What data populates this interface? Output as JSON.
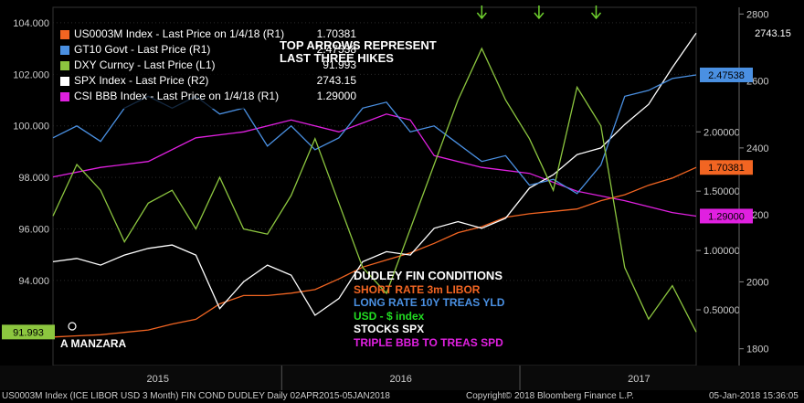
{
  "chart_data": {
    "type": "line",
    "title": "",
    "x_ticks": [
      "2015",
      "2016",
      "2017"
    ],
    "left_axis": {
      "ticks": [
        "104.000",
        "102.000",
        "100.000",
        "98.000",
        "96.000",
        "94.000"
      ],
      "range": [
        90.7,
        104.6
      ]
    },
    "right_axis_r1": {
      "ticks": [
        "2.00000",
        "1.50000",
        "1.00000",
        "0.50000"
      ],
      "range": [
        0.03,
        3.05
      ]
    },
    "right_axis_r2": {
      "ticks": [
        "2800",
        "2600",
        "2400",
        "2200",
        "2000",
        "1800"
      ],
      "range": [
        1750,
        2820
      ]
    },
    "series": [
      {
        "name": "US0003M Index - Last Price on 1/4/18 (R1)",
        "value_label": "1.70381",
        "color": "#f26522",
        "axis": "R1",
        "points": [
          [
            0,
            0.27
          ],
          [
            0.05,
            0.28
          ],
          [
            0.1,
            0.29
          ],
          [
            0.15,
            0.31
          ],
          [
            0.2,
            0.33
          ],
          [
            0.25,
            0.38
          ],
          [
            0.3,
            0.42
          ],
          [
            0.35,
            0.55
          ],
          [
            0.4,
            0.62
          ],
          [
            0.45,
            0.62
          ],
          [
            0.5,
            0.64
          ],
          [
            0.55,
            0.67
          ],
          [
            0.6,
            0.76
          ],
          [
            0.65,
            0.86
          ],
          [
            0.7,
            0.92
          ],
          [
            0.75,
            0.98
          ],
          [
            0.8,
            1.06
          ],
          [
            0.85,
            1.15
          ],
          [
            0.9,
            1.2
          ],
          [
            0.95,
            1.28
          ],
          [
            1.0,
            1.31
          ],
          [
            1.05,
            1.33
          ],
          [
            1.1,
            1.35
          ],
          [
            1.15,
            1.42
          ],
          [
            1.2,
            1.47
          ],
          [
            1.25,
            1.55
          ],
          [
            1.3,
            1.61
          ],
          [
            1.35,
            1.7
          ]
        ]
      },
      {
        "name": "GT10 Govt - Last Price (R1)",
        "value_label": "2.47538",
        "color": "#4a90e2",
        "axis": "R1",
        "points": [
          [
            0,
            1.95
          ],
          [
            0.05,
            2.05
          ],
          [
            0.1,
            1.92
          ],
          [
            0.15,
            2.2
          ],
          [
            0.2,
            2.3
          ],
          [
            0.25,
            2.2
          ],
          [
            0.3,
            2.3
          ],
          [
            0.35,
            2.15
          ],
          [
            0.4,
            2.2
          ],
          [
            0.45,
            1.88
          ],
          [
            0.5,
            2.05
          ],
          [
            0.55,
            1.85
          ],
          [
            0.6,
            1.95
          ],
          [
            0.65,
            2.2
          ],
          [
            0.7,
            2.25
          ],
          [
            0.75,
            2.0
          ],
          [
            0.8,
            2.05
          ],
          [
            0.85,
            1.9
          ],
          [
            0.9,
            1.75
          ],
          [
            0.95,
            1.8
          ],
          [
            1.0,
            1.55
          ],
          [
            1.05,
            1.6
          ],
          [
            1.1,
            1.48
          ],
          [
            1.15,
            1.72
          ],
          [
            1.2,
            2.3
          ],
          [
            1.25,
            2.35
          ],
          [
            1.3,
            2.45
          ],
          [
            1.35,
            2.48
          ]
        ]
      },
      {
        "name": "DXY Curncy - Last Price (L1)",
        "value_label": "91.993",
        "color": "#8cc63f",
        "axis": "L1",
        "points": [
          [
            0,
            96.5
          ],
          [
            0.05,
            98.5
          ],
          [
            0.1,
            97.5
          ],
          [
            0.15,
            95.5
          ],
          [
            0.2,
            97.0
          ],
          [
            0.25,
            97.5
          ],
          [
            0.3,
            96.0
          ],
          [
            0.35,
            98.0
          ],
          [
            0.4,
            96.0
          ],
          [
            0.45,
            95.8
          ],
          [
            0.5,
            97.3
          ],
          [
            0.55,
            99.5
          ],
          [
            0.6,
            97.0
          ],
          [
            0.65,
            94.5
          ],
          [
            0.7,
            93.5
          ],
          [
            0.75,
            96.0
          ],
          [
            0.8,
            98.5
          ],
          [
            0.85,
            101.0
          ],
          [
            0.9,
            103.0
          ],
          [
            0.95,
            101.0
          ],
          [
            1.0,
            99.5
          ],
          [
            1.05,
            97.5
          ],
          [
            1.1,
            101.5
          ],
          [
            1.15,
            100.0
          ],
          [
            1.2,
            94.5
          ],
          [
            1.25,
            92.5
          ],
          [
            1.3,
            93.8
          ],
          [
            1.35,
            92.0
          ]
        ]
      },
      {
        "name": "SPX Index - Last Price (R2)",
        "value_label": "2743.15",
        "color": "#ffffff",
        "axis": "R2",
        "points": [
          [
            0,
            2060
          ],
          [
            0.05,
            2070
          ],
          [
            0.1,
            2050
          ],
          [
            0.15,
            2080
          ],
          [
            0.2,
            2100
          ],
          [
            0.25,
            2110
          ],
          [
            0.3,
            2080
          ],
          [
            0.35,
            1920
          ],
          [
            0.4,
            2000
          ],
          [
            0.45,
            2050
          ],
          [
            0.5,
            2020
          ],
          [
            0.55,
            1900
          ],
          [
            0.6,
            1950
          ],
          [
            0.65,
            2060
          ],
          [
            0.7,
            2090
          ],
          [
            0.75,
            2080
          ],
          [
            0.8,
            2160
          ],
          [
            0.85,
            2180
          ],
          [
            0.9,
            2160
          ],
          [
            0.95,
            2190
          ],
          [
            1.0,
            2280
          ],
          [
            1.05,
            2320
          ],
          [
            1.1,
            2380
          ],
          [
            1.15,
            2400
          ],
          [
            1.2,
            2470
          ],
          [
            1.25,
            2530
          ],
          [
            1.3,
            2640
          ],
          [
            1.35,
            2743
          ]
        ]
      },
      {
        "name": "CSI BBB Index - Last Price on 1/4/18 (R1)",
        "value_label": "1.29000",
        "color": "#e020e0",
        "axis": "R1",
        "points": [
          [
            0,
            1.62
          ],
          [
            0.1,
            1.7
          ],
          [
            0.2,
            1.75
          ],
          [
            0.3,
            1.95
          ],
          [
            0.4,
            2.0
          ],
          [
            0.5,
            2.1
          ],
          [
            0.6,
            2.0
          ],
          [
            0.7,
            2.15
          ],
          [
            0.75,
            2.1
          ],
          [
            0.8,
            1.8
          ],
          [
            0.9,
            1.7
          ],
          [
            1.0,
            1.65
          ],
          [
            1.1,
            1.5
          ],
          [
            1.2,
            1.42
          ],
          [
            1.3,
            1.32
          ],
          [
            1.35,
            1.29
          ]
        ]
      }
    ]
  },
  "notes": {
    "top_arrows": "TOP ARROWS REPRESENT\nLAST THREE HIKES",
    "author": "A MANZARA",
    "dudley_title": "DUDLEY FIN CONDITIONS",
    "dudley_lines": [
      {
        "text": "SHORT RATE 3m LIBOR",
        "color": "#f26522"
      },
      {
        "text": "LONG RATE 10Y TREAS YLD",
        "color": "#4a90e2"
      },
      {
        "text": "USD - $ index",
        "color": "#22dd22"
      },
      {
        "text": "STOCKS SPX",
        "color": "#ffffff"
      },
      {
        "text": "TRIPLE BBB TO TREAS SPD",
        "color": "#e020e0"
      }
    ]
  },
  "footer": {
    "left": "US0003M Index (ICE LIBOR USD 3 Month) FIN COND DUDLEY  Daily 02APR2015-05JAN2018",
    "center": "Copyright© 2018 Bloomberg Finance L.P.",
    "right": "05-Jan-2018 15:36:05"
  }
}
